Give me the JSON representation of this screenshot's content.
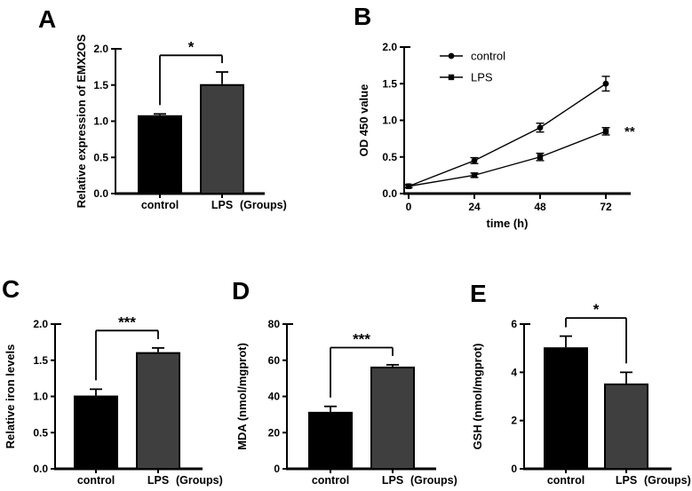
{
  "colors": {
    "bar_control": "#000000",
    "bar_lps": "#3f3f3f",
    "axis": "#000000",
    "line": "#000000",
    "background": "#ffffff"
  },
  "chart_data": [
    {
      "panel": "A",
      "type": "bar",
      "ylabel": "Relative expression of EMX2OS",
      "categories": [
        "control",
        "LPS"
      ],
      "x_suffix": "(Groups)",
      "values": [
        1.07,
        1.5
      ],
      "errors_up": [
        0.03,
        0.18
      ],
      "ylim": [
        0,
        2
      ],
      "ytick_labels": [
        "0.0",
        "0.5",
        "1.0",
        "1.5",
        "2.0"
      ],
      "significance": "*",
      "bracket_top": 1.91,
      "bar_colors": [
        "#000000",
        "#3f3f3f"
      ]
    },
    {
      "panel": "B",
      "type": "line",
      "ylabel": "OD 450 value",
      "xlabel": "time (h)",
      "x": [
        0,
        24,
        48,
        72
      ],
      "xtick_labels": [
        "0",
        "24",
        "48",
        "72"
      ],
      "ytick_labels": [
        "0.0",
        "0.5",
        "1.0",
        "1.5",
        "2.0"
      ],
      "ylim": [
        0,
        2
      ],
      "series": [
        {
          "name": "control",
          "marker": "circle",
          "values": [
            0.1,
            0.45,
            0.9,
            1.5
          ],
          "errors": [
            0.02,
            0.04,
            0.06,
            0.1
          ]
        },
        {
          "name": "LPS",
          "marker": "square",
          "values": [
            0.1,
            0.25,
            0.5,
            0.85
          ],
          "errors": [
            0.02,
            0.03,
            0.05,
            0.05
          ]
        }
      ],
      "annotation": "**",
      "legend_position": "top-left"
    },
    {
      "panel": "C",
      "type": "bar",
      "ylabel": "Relative iron levels",
      "categories": [
        "control",
        "LPS"
      ],
      "x_suffix": "(Groups)",
      "values": [
        1.0,
        1.6
      ],
      "errors_up": [
        0.1,
        0.07
      ],
      "ylim": [
        0,
        2
      ],
      "ytick_labels": [
        "0.0",
        "0.5",
        "1.0",
        "1.5",
        "2.0"
      ],
      "significance": "***",
      "bracket_top": 1.91,
      "bar_colors": [
        "#000000",
        "#3f3f3f"
      ]
    },
    {
      "panel": "D",
      "type": "bar",
      "ylabel": "MDA (nmol/mgprot)",
      "categories": [
        "control",
        "LPS"
      ],
      "x_suffix": "(Groups)",
      "values": [
        31,
        56
      ],
      "errors_up": [
        3.5,
        1.5
      ],
      "ylim": [
        0,
        80
      ],
      "ytick_labels": [
        "0",
        "20",
        "40",
        "60",
        "80"
      ],
      "significance": "***",
      "bracket_top": 67,
      "bar_colors": [
        "#000000",
        "#3f3f3f"
      ]
    },
    {
      "panel": "E",
      "type": "bar",
      "ylabel": "GSH (nmol/mgprot)",
      "categories": [
        "control",
        "LPS"
      ],
      "x_suffix": "(Groups)",
      "values": [
        5.0,
        3.5
      ],
      "errors_up": [
        0.5,
        0.5
      ],
      "ylim": [
        0,
        6
      ],
      "ytick_labels": [
        "0",
        "2",
        "4",
        "6"
      ],
      "significance": "*",
      "bracket_top": 6.25,
      "bar_colors": [
        "#000000",
        "#3f3f3f"
      ]
    }
  ]
}
